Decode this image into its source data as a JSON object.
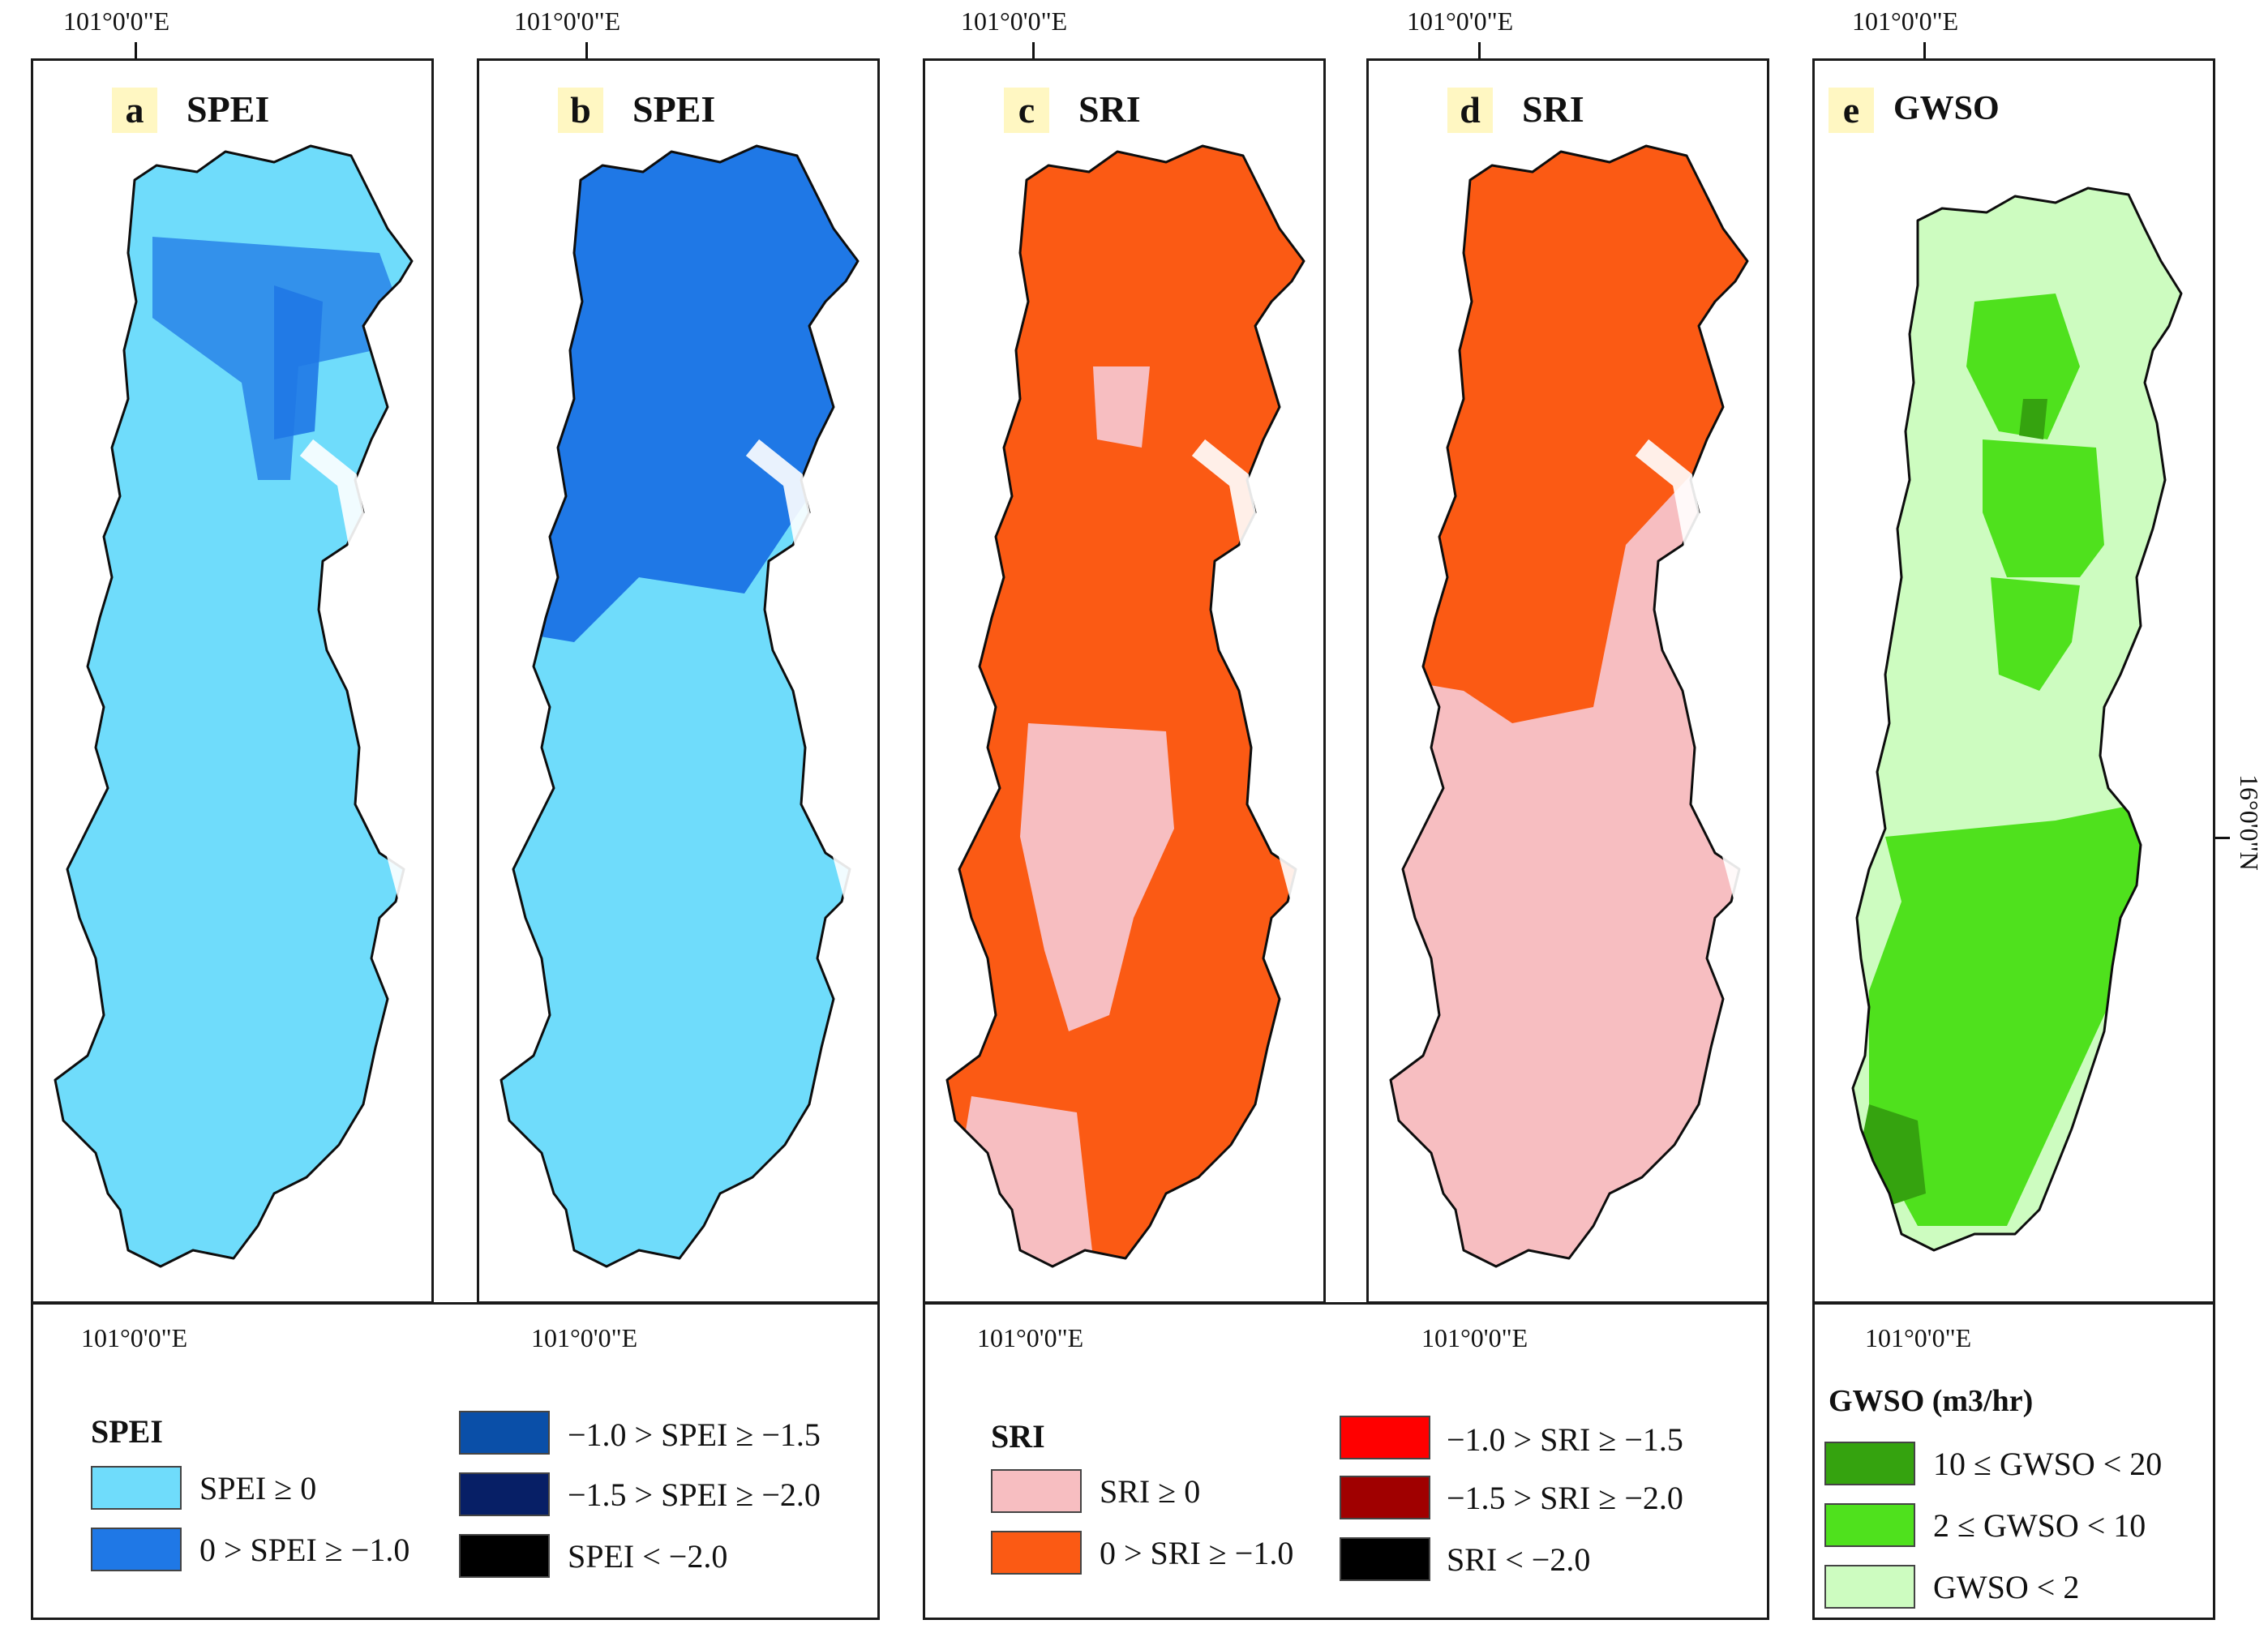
{
  "coords": {
    "top_lon": "101°0'0\"E",
    "bottom_lon": "101°0'0\"E",
    "right_lat": "16°0'0\"N"
  },
  "panels": [
    {
      "letter": "a",
      "title": "SPEI"
    },
    {
      "letter": "b",
      "title": "SPEI"
    },
    {
      "letter": "c",
      "title": "SRI"
    },
    {
      "letter": "d",
      "title": "SRI"
    },
    {
      "letter": "e",
      "title": "GWSO"
    }
  ],
  "colors": {
    "outline": "#0d0d0d",
    "spei_ge0": "#6fdcfb",
    "spei_0_m1": "#1f78e6",
    "spei_m1_m15": "#0a4fa8",
    "spei_m15_m2": "#071f66",
    "spei_lt_m2": "#000000",
    "sri_ge0": "#f7bec1",
    "sri_0_m1": "#fb5a14",
    "sri_m1_m15": "#ff0000",
    "sri_m15_m2": "#a00000",
    "sri_lt_m2": "#000000",
    "gwso_10_20": "#35a30f",
    "gwso_2_10": "#4fe11d",
    "gwso_lt2": "#cdfcc0"
  },
  "legends": {
    "spei": {
      "title": "SPEI",
      "items": [
        "SPEI ≥ 0",
        "0 > SPEI ≥ −1.0",
        "−1.0 > SPEI ≥ −1.5",
        "−1.5 > SPEI ≥ −2.0",
        "SPEI < −2.0"
      ]
    },
    "sri": {
      "title": "SRI",
      "items": [
        "SRI ≥ 0",
        "0 > SRI ≥ −1.0",
        "−1.0 > SRI ≥ −1.5",
        "−1.5 > SRI ≥ −2.0",
        "SRI < −2.0"
      ]
    },
    "gwso": {
      "title": "GWSO (m3/hr)",
      "items": [
        "10 ≤ GWSO < 20",
        "2 ≤ GWSO < 10",
        "GWSO < 2"
      ]
    }
  }
}
